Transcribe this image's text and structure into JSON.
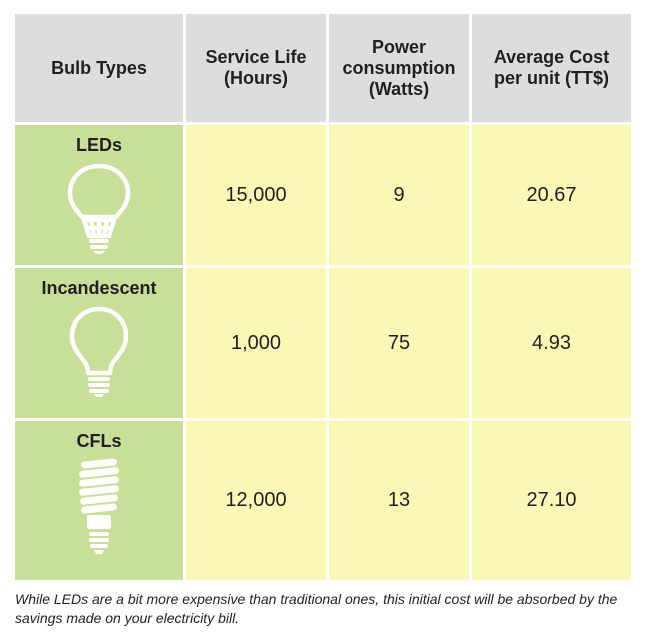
{
  "headers": {
    "bulb_types": "Bulb Types",
    "service_life": "Service Life\n(Hours)",
    "power": "Power\nconsumption\n(Watts)",
    "cost": "Average Cost\nper unit (TT$)"
  },
  "rows": [
    {
      "type": "LEDs",
      "icon": "led-bulb-icon",
      "service_life": "15,000",
      "power": "9",
      "cost": "20.67"
    },
    {
      "type": "Incandescent",
      "icon": "incandescent-bulb-icon",
      "service_life": "1,000",
      "power": "75",
      "cost": "4.93"
    },
    {
      "type": "CFLs",
      "icon": "cfl-bulb-icon",
      "service_life": "12,000",
      "power": "13",
      "cost": "27.10"
    }
  ],
  "footnote": "While LEDs are a bit more expensive than traditional ones, this initial cost will be absorbed by the savings made on your electricity bill.",
  "colors": {
    "header": "#dcdddf",
    "type_column": "#c7df99",
    "value_cells": "#fbf7b4"
  }
}
